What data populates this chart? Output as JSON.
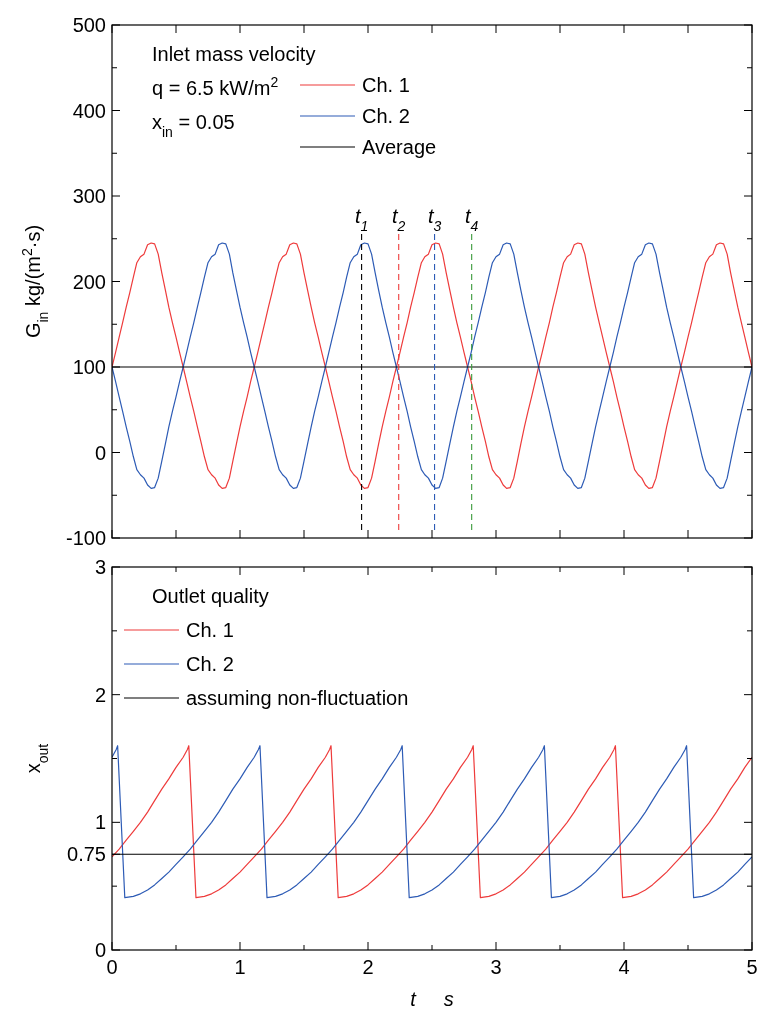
{
  "chart_data": [
    {
      "type": "line",
      "ylabel": "G$_{in}$   kg/(m$^{2}$·s)",
      "annotations": [
        "Inlet mass velocity",
        "q = 6.5 kW/m$^{2}$",
        "x$_{in}$ = 0.05"
      ],
      "x": [
        0,
        0.028,
        0.056,
        0.083,
        0.111,
        0.139,
        0.167,
        0.194,
        0.222,
        0.25,
        0.278,
        0.306,
        0.333,
        0.361,
        0.389,
        0.417,
        0.444,
        0.472,
        0.5,
        0.528,
        0.556,
        0.583,
        0.611,
        0.639,
        0.667,
        0.694,
        0.722,
        0.75,
        0.778,
        0.806,
        0.833,
        0.861,
        0.889,
        0.917,
        0.944,
        0.972,
        1,
        1.028,
        1.056,
        1.083,
        1.111,
        1.139,
        1.167,
        1.194,
        1.222,
        1.25,
        1.278,
        1.306,
        1.333,
        1.361,
        1.389,
        1.417,
        1.444,
        1.472,
        1.5,
        1.528,
        1.556,
        1.583,
        1.611,
        1.639,
        1.667,
        1.694,
        1.722,
        1.75,
        1.778,
        1.806,
        1.833,
        1.861,
        1.889,
        1.917,
        1.944,
        1.972,
        2,
        2.028,
        2.056,
        2.083,
        2.111,
        2.139,
        2.167,
        2.194,
        2.222,
        2.25,
        2.278,
        2.306,
        2.333,
        2.361,
        2.389,
        2.417,
        2.444,
        2.472,
        2.5,
        2.528,
        2.556,
        2.583,
        2.611,
        2.639,
        2.667,
        2.694,
        2.722,
        2.75,
        2.778,
        2.806,
        2.833,
        2.861,
        2.889,
        2.917,
        2.944,
        2.972,
        3,
        3.028,
        3.056,
        3.083,
        3.111,
        3.139,
        3.167,
        3.194,
        3.222,
        3.25,
        3.278,
        3.306,
        3.333,
        3.361,
        3.389,
        3.417,
        3.444,
        3.472,
        3.5,
        3.528,
        3.556,
        3.583,
        3.611,
        3.639,
        3.667,
        3.694,
        3.722,
        3.75,
        3.778,
        3.806,
        3.833,
        3.861,
        3.889,
        3.917,
        3.944,
        3.972,
        4,
        4.028,
        4.056,
        4.083,
        4.111,
        4.139,
        4.167,
        4.194,
        4.222,
        4.25,
        4.278,
        4.306,
        4.333,
        4.361,
        4.389,
        4.417,
        4.444,
        4.472,
        4.5,
        4.528,
        4.556,
        4.583,
        4.611,
        4.639,
        4.667,
        4.694,
        4.722,
        4.75,
        4.778,
        4.806,
        4.833,
        4.861,
        4.889,
        4.917,
        4.944,
        4.972,
        5
      ],
      "series": [
        {
          "name": "Ch. 1",
          "color": "#ee3b3b",
          "values": [
            100,
            117,
            135,
            152,
            170,
            187,
            205,
            222,
            229,
            232,
            243,
            245,
            244,
            232,
            210,
            190,
            170,
            152,
            135,
            117,
            100,
            83,
            65,
            48,
            30,
            13,
            -5,
            -20,
            -26,
            -30,
            -38,
            -42,
            -41,
            -30,
            -10,
            10,
            30,
            48,
            65,
            83,
            100,
            117,
            135,
            152,
            170,
            187,
            205,
            222,
            229,
            232,
            243,
            245,
            244,
            232,
            210,
            190,
            170,
            152,
            135,
            117,
            100,
            83,
            65,
            48,
            30,
            13,
            -5,
            -20,
            -26,
            -30,
            -38,
            -42,
            -41,
            -30,
            -10,
            10,
            30,
            48,
            65,
            83,
            100,
            117,
            135,
            152,
            170,
            187,
            205,
            222,
            229,
            232,
            243,
            245,
            244,
            232,
            210,
            190,
            170,
            152,
            135,
            117,
            100,
            83,
            65,
            48,
            30,
            13,
            -5,
            -20,
            -26,
            -30,
            -38,
            -42,
            -41,
            -30,
            -10,
            10,
            30,
            48,
            65,
            83,
            100,
            117,
            135,
            152,
            170,
            187,
            205,
            222,
            229,
            232,
            243,
            245,
            244,
            232,
            210,
            190,
            170,
            152,
            135,
            117,
            100,
            83,
            65,
            48,
            30,
            13,
            -5,
            -20,
            -26,
            -30,
            -38,
            -42,
            -41,
            -30,
            -10,
            10,
            30,
            48,
            65,
            83,
            100,
            117,
            135,
            152,
            170,
            187,
            205,
            222,
            229,
            232,
            243,
            245,
            244,
            232,
            210,
            190,
            170,
            152,
            135,
            117,
            100
          ]
        },
        {
          "name": "Ch. 2",
          "color": "#2d5bb5",
          "values": [
            100,
            83,
            65,
            48,
            30,
            13,
            -5,
            -20,
            -26,
            -30,
            -38,
            -42,
            -41,
            -30,
            -10,
            10,
            30,
            48,
            65,
            83,
            100,
            117,
            135,
            152,
            170,
            187,
            205,
            222,
            229,
            232,
            243,
            245,
            244,
            232,
            210,
            190,
            170,
            152,
            135,
            117,
            100,
            83,
            65,
            48,
            30,
            13,
            -5,
            -20,
            -26,
            -30,
            -38,
            -42,
            -41,
            -30,
            -10,
            10,
            30,
            48,
            65,
            83,
            100,
            117,
            135,
            152,
            170,
            187,
            205,
            222,
            229,
            232,
            243,
            245,
            244,
            232,
            210,
            190,
            170,
            152,
            135,
            117,
            100,
            83,
            65,
            48,
            30,
            13,
            -5,
            -20,
            -26,
            -30,
            -38,
            -42,
            -41,
            -30,
            -10,
            10,
            30,
            48,
            65,
            83,
            100,
            117,
            135,
            152,
            170,
            187,
            205,
            222,
            229,
            232,
            243,
            245,
            244,
            232,
            210,
            190,
            170,
            152,
            135,
            117,
            100,
            83,
            65,
            48,
            30,
            13,
            -5,
            -20,
            -26,
            -30,
            -38,
            -42,
            -41,
            -30,
            -10,
            10,
            30,
            48,
            65,
            83,
            100,
            117,
            135,
            152,
            170,
            187,
            205,
            222,
            229,
            232,
            243,
            245,
            244,
            232,
            210,
            190,
            170,
            152,
            135,
            117,
            100,
            83,
            65,
            48,
            30,
            13,
            -5,
            -20,
            -26,
            -30,
            -38,
            -42,
            -41,
            -30,
            -10,
            10,
            30,
            48,
            65,
            83,
            100
          ]
        },
        {
          "name": "Average",
          "color": "#000000",
          "x": [
            0,
            5
          ],
          "values": [
            100,
            100
          ]
        }
      ],
      "xlim": [
        0,
        5
      ],
      "xticks": [
        {
          "value": 0,
          "label": null
        },
        {
          "value": 0.5,
          "label": null
        },
        {
          "value": 1,
          "label": null
        },
        {
          "value": 1.5,
          "label": null
        },
        {
          "value": 2,
          "label": null
        },
        {
          "value": 2.5,
          "label": null
        },
        {
          "value": 3,
          "label": null
        },
        {
          "value": 3.5,
          "label": null
        },
        {
          "value": 4,
          "label": null
        },
        {
          "value": 4.5,
          "label": null
        },
        {
          "value": 5,
          "label": null
        }
      ],
      "ylim": [
        -100,
        500
      ],
      "yticks": [
        -100,
        {
          "value": -50,
          "label": null
        },
        0,
        {
          "value": 50,
          "label": null
        },
        100,
        {
          "value": 150,
          "label": null
        },
        200,
        {
          "value": 250,
          "label": null
        },
        300,
        {
          "value": 350,
          "label": null
        },
        400,
        {
          "value": 450,
          "label": null
        },
        500
      ],
      "tick_labels": "y",
      "legend": "top",
      "ref_lines": [
        {
          "axis": "x",
          "value": 1.95,
          "label": "t$_{1}$",
          "color": "#000000",
          "line_style": "dashed"
        },
        {
          "axis": "x",
          "value": 2.24,
          "label": "t$_{2}$",
          "color": "#ee3b3b",
          "line_style": "dashed"
        },
        {
          "axis": "x",
          "value": 2.52,
          "label": "t$_{3}$",
          "color": "#2d5bb5",
          "line_style": "dashed"
        },
        {
          "axis": "x",
          "value": 2.81,
          "label": "t$_{4}$",
          "color": "#3a9a3a",
          "line_style": "dashed"
        }
      ]
    },
    {
      "type": "line",
      "ylabel": "x$_{out}$",
      "xlabel": "t     s",
      "annotations": [
        "Outlet quality"
      ],
      "series": [
        {
          "name": "Ch. 1",
          "color": "#ee3b3b",
          "x": [
            0,
            0.056,
            0.111,
            0.167,
            0.222,
            0.278,
            0.333,
            0.389,
            0.444,
            0.5,
            0.556,
            0.589,
            0.6,
            0.656,
            0.722,
            0.778,
            0.833,
            0.889,
            0.944,
            1.0,
            1.056,
            1.111,
            1.167,
            1.222,
            1.278,
            1.333,
            1.389,
            1.444,
            1.5,
            1.556,
            1.611,
            1.667,
            1.7,
            1.711,
            1.767,
            1.833,
            1.889,
            1.944,
            2.0,
            2.056,
            2.111,
            2.167,
            2.222,
            2.278,
            2.333,
            2.389,
            2.444,
            2.5,
            2.556,
            2.611,
            2.667,
            2.722,
            2.778,
            2.811,
            2.822,
            2.878,
            2.944,
            3.0,
            3.056,
            3.111,
            3.167,
            3.222,
            3.278,
            3.333,
            3.389,
            3.444,
            3.5,
            3.556,
            3.611,
            3.667,
            3.722,
            3.778,
            3.833,
            3.889,
            3.922,
            3.933,
            3.989,
            4.056,
            4.111,
            4.167,
            4.222,
            4.278,
            4.333,
            4.389,
            4.444,
            4.5,
            4.556,
            4.611,
            4.667,
            4.722,
            4.778,
            4.833,
            4.889,
            4.944,
            5.0
          ],
          "values": [
            0.73,
            0.79,
            0.86,
            0.93,
            1.0,
            1.08,
            1.17,
            1.26,
            1.34,
            1.43,
            1.51,
            1.57,
            1.6,
            0.41,
            0.42,
            0.44,
            0.47,
            0.51,
            0.56,
            0.61,
            0.67,
            0.73,
            0.79,
            0.86,
            0.93,
            1.0,
            1.08,
            1.17,
            1.26,
            1.34,
            1.43,
            1.51,
            1.57,
            1.6,
            0.41,
            0.42,
            0.44,
            0.47,
            0.51,
            0.56,
            0.61,
            0.67,
            0.73,
            0.79,
            0.86,
            0.93,
            1.0,
            1.08,
            1.17,
            1.26,
            1.34,
            1.43,
            1.51,
            1.57,
            1.6,
            0.41,
            0.42,
            0.44,
            0.47,
            0.51,
            0.56,
            0.61,
            0.67,
            0.73,
            0.79,
            0.86,
            0.93,
            1.0,
            1.08,
            1.17,
            1.26,
            1.34,
            1.43,
            1.51,
            1.57,
            1.6,
            0.41,
            0.42,
            0.44,
            0.47,
            0.51,
            0.56,
            0.61,
            0.67,
            0.73,
            0.79,
            0.86,
            0.93,
            1.0,
            1.08,
            1.17,
            1.26,
            1.34,
            1.43,
            1.51
          ]
        },
        {
          "name": "Ch. 2",
          "color": "#2d5bb5",
          "x": [
            0,
            0.033,
            0.044,
            0.1,
            0.167,
            0.222,
            0.278,
            0.333,
            0.389,
            0.444,
            0.5,
            0.556,
            0.611,
            0.667,
            0.722,
            0.778,
            0.833,
            0.889,
            0.944,
            1.0,
            1.056,
            1.111,
            1.144,
            1.156,
            1.211,
            1.278,
            1.333,
            1.389,
            1.444,
            1.5,
            1.556,
            1.611,
            1.667,
            1.722,
            1.778,
            1.833,
            1.889,
            1.944,
            2.0,
            2.056,
            2.111,
            2.167,
            2.222,
            2.256,
            2.267,
            2.322,
            2.389,
            2.444,
            2.5,
            2.556,
            2.611,
            2.667,
            2.722,
            2.778,
            2.833,
            2.889,
            2.944,
            3.0,
            3.056,
            3.111,
            3.167,
            3.222,
            3.278,
            3.333,
            3.367,
            3.378,
            3.433,
            3.5,
            3.556,
            3.611,
            3.667,
            3.722,
            3.778,
            3.833,
            3.889,
            3.944,
            4.0,
            4.056,
            4.111,
            4.167,
            4.222,
            4.278,
            4.333,
            4.389,
            4.444,
            4.478,
            4.489,
            4.544,
            4.611,
            4.667,
            4.722,
            4.778,
            4.833,
            4.889,
            4.944,
            5.0
          ],
          "values": [
            1.51,
            1.57,
            1.6,
            0.41,
            0.42,
            0.44,
            0.47,
            0.51,
            0.56,
            0.61,
            0.67,
            0.73,
            0.79,
            0.86,
            0.93,
            1.0,
            1.08,
            1.17,
            1.26,
            1.34,
            1.43,
            1.51,
            1.57,
            1.6,
            0.41,
            0.42,
            0.44,
            0.47,
            0.51,
            0.56,
            0.61,
            0.67,
            0.73,
            0.79,
            0.86,
            0.93,
            1.0,
            1.08,
            1.17,
            1.26,
            1.34,
            1.43,
            1.51,
            1.57,
            1.6,
            0.41,
            0.42,
            0.44,
            0.47,
            0.51,
            0.56,
            0.61,
            0.67,
            0.73,
            0.79,
            0.86,
            0.93,
            1.0,
            1.08,
            1.17,
            1.26,
            1.34,
            1.43,
            1.51,
            1.57,
            1.6,
            0.41,
            0.42,
            0.44,
            0.47,
            0.51,
            0.56,
            0.61,
            0.67,
            0.73,
            0.79,
            0.86,
            0.93,
            1.0,
            1.08,
            1.17,
            1.26,
            1.34,
            1.43,
            1.51,
            1.57,
            1.6,
            0.41,
            0.42,
            0.44,
            0.47,
            0.51,
            0.56,
            0.61,
            0.67,
            0.73
          ]
        },
        {
          "name": "assuming non-fluctuation",
          "color": "#000000",
          "x": [
            0,
            5
          ],
          "values": [
            0.75,
            0.75
          ]
        }
      ],
      "xlim": [
        0,
        5
      ],
      "xticks": [
        0,
        {
          "value": 0.5,
          "label": null
        },
        1,
        {
          "value": 1.5,
          "label": null
        },
        2,
        {
          "value": 2.5,
          "label": null
        },
        3,
        {
          "value": 3.5,
          "label": null
        },
        4,
        {
          "value": 4.5,
          "label": null
        },
        5
      ],
      "ylim": [
        0,
        3
      ],
      "yticks": [
        0,
        {
          "value": 0.5,
          "label": null
        },
        0.75,
        1,
        {
          "value": 1.5,
          "label": null
        },
        2,
        {
          "value": 2.5,
          "label": null
        },
        3
      ],
      "legend": "top left"
    }
  ]
}
